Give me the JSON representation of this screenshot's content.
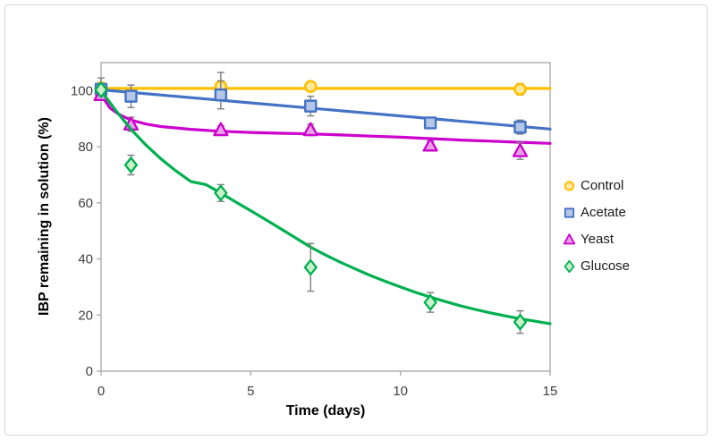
{
  "chart_data": {
    "type": "scatter",
    "title": "",
    "xlabel": "Time (days)",
    "ylabel": "IBP remaining in solution (%)",
    "xlim": [
      0,
      15
    ],
    "ylim": [
      0,
      110
    ],
    "xticks": [
      0,
      5,
      10,
      15
    ],
    "yticks": [
      0,
      20,
      40,
      60,
      80,
      100
    ],
    "grid": false,
    "legend_position": "right",
    "axis_color": "#a6a6a6",
    "error_bar_color": "#7f7f7f",
    "tick_label_color": "#404040",
    "series": [
      {
        "name": "Control",
        "marker": "circle",
        "color": "#FFC000",
        "fill": "#FFE9A0",
        "x": [
          0,
          4,
          7,
          14
        ],
        "y": [
          101,
          101.5,
          101.5,
          100.5
        ],
        "yerr": [
          1.5,
          5,
          1,
          2
        ],
        "trend": [
          [
            0,
            100.8
          ],
          [
            15,
            100.8
          ]
        ]
      },
      {
        "name": "Acetate",
        "marker": "square",
        "color": "#4472C4",
        "fill": "#B4C7E7",
        "x": [
          0,
          1,
          4,
          7,
          11,
          14
        ],
        "y": [
          100.5,
          98,
          98.5,
          94.5,
          88.5,
          87
        ],
        "yerr": [
          4,
          4,
          5,
          3.5,
          1,
          2.5
        ],
        "trend": [
          [
            0,
            100.3
          ],
          [
            15,
            86.3
          ]
        ]
      },
      {
        "name": "Yeast",
        "marker": "triangle",
        "color": "#CC00CC",
        "fill": "#E79FE7",
        "x": [
          0,
          1,
          4,
          7,
          11,
          14
        ],
        "y": [
          98.5,
          88,
          86,
          86,
          80.5,
          78.5
        ],
        "yerr": [
          1.5,
          2.5,
          1.5,
          2,
          1.5,
          3
        ],
        "trend": [
          [
            0,
            98.5
          ],
          [
            0.3,
            93.8
          ],
          [
            0.6,
            91.5
          ],
          [
            1,
            89.5
          ],
          [
            1.5,
            88.1
          ],
          [
            2,
            87.2
          ],
          [
            3,
            86.2
          ],
          [
            4,
            85.5
          ],
          [
            5,
            85.1
          ],
          [
            6,
            84.8
          ],
          [
            7,
            84.6
          ],
          [
            8,
            84.2
          ],
          [
            9,
            83.8
          ],
          [
            10,
            83.4
          ],
          [
            11,
            82.9
          ],
          [
            12,
            82.4
          ],
          [
            13,
            82.0
          ],
          [
            14,
            81.6
          ],
          [
            15,
            81.2
          ]
        ]
      },
      {
        "name": "Glucose",
        "marker": "diamond",
        "color": "#00B050",
        "fill": "#C9F0C9",
        "x": [
          0,
          1,
          4,
          7,
          11,
          14
        ],
        "y": [
          100.3,
          73.5,
          63.5,
          37,
          24.5,
          17.5
        ],
        "yerr": [
          1.5,
          3.5,
          3,
          8.5,
          3.5,
          4
        ],
        "trend": [
          [
            0,
            100
          ],
          [
            0.5,
            92.8
          ],
          [
            1,
            86.2
          ],
          [
            1.5,
            80.6
          ],
          [
            2,
            75.7
          ],
          [
            2.5,
            71.4
          ],
          [
            3,
            67.6
          ],
          [
            3.5,
            66.5
          ],
          [
            4,
            63.5
          ],
          [
            4.5,
            60.3
          ],
          [
            5,
            57.2
          ],
          [
            5.5,
            54.0
          ],
          [
            6,
            50.8
          ],
          [
            6.5,
            47.5
          ],
          [
            7,
            44.2
          ],
          [
            7.5,
            41.4
          ],
          [
            8,
            38.8
          ],
          [
            8.5,
            36.4
          ],
          [
            9,
            34.1
          ],
          [
            9.5,
            32.0
          ],
          [
            10,
            30.0
          ],
          [
            10.5,
            28.1
          ],
          [
            11,
            26.4
          ],
          [
            11.5,
            24.8
          ],
          [
            12,
            23.3
          ],
          [
            12.5,
            22.0
          ],
          [
            13,
            20.8
          ],
          [
            13.5,
            19.7
          ],
          [
            14,
            18.7
          ],
          [
            14.5,
            17.8
          ],
          [
            15,
            16.9
          ]
        ]
      }
    ]
  }
}
